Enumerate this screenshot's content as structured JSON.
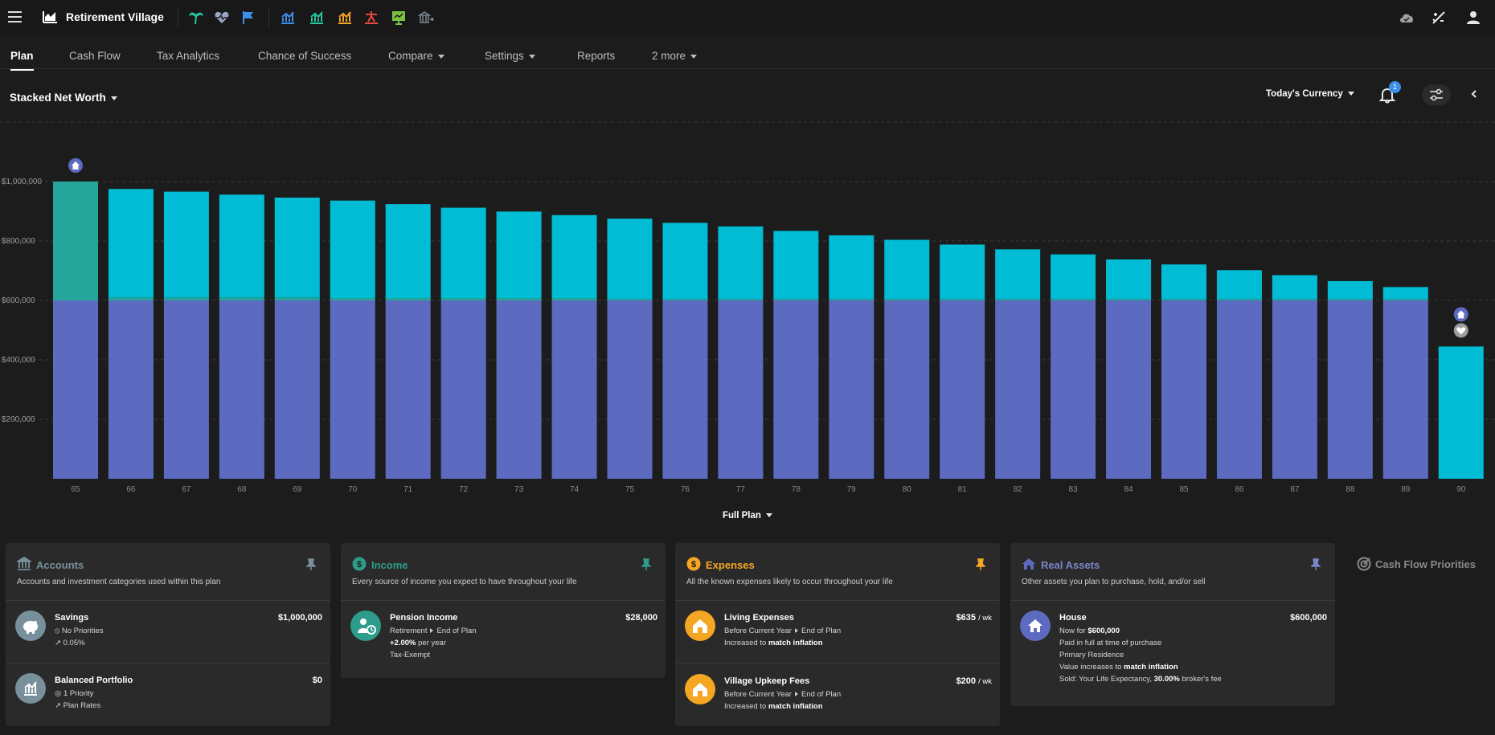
{
  "app": {
    "title": "Retirement Village"
  },
  "toolbar": {
    "icons": [
      "palm-tree-icon",
      "heart-monitor-icon",
      "flag-icon",
      "chart-blue-icon",
      "chart-green-icon",
      "chart-orange-icon",
      "chart-red-icon",
      "presentation-icon",
      "bank-arrow-icon"
    ]
  },
  "tabs": [
    {
      "label": "Plan",
      "active": true
    },
    {
      "label": "Cash Flow"
    },
    {
      "label": "Tax Analytics"
    },
    {
      "label": "Chance of Success"
    },
    {
      "label": "Compare",
      "dropdown": true
    },
    {
      "label": "Settings",
      "dropdown": true
    },
    {
      "label": "Reports"
    },
    {
      "label": "2 more",
      "dropdown": true
    }
  ],
  "chart_header": {
    "title": "Stacked Net Worth",
    "currency": "Today's Currency",
    "notification_count": "1",
    "range": "Full Plan"
  },
  "colors": {
    "house": "#5c6bc0",
    "savings": "#00bcd4",
    "portfolio": "#26a69a",
    "income": "#2e9c8a",
    "expenses": "#f5a623",
    "accounts": "#78909c"
  },
  "chart_data": {
    "type": "bar",
    "stacked": true,
    "title": "Stacked Net Worth",
    "xlabel": "",
    "ylabel": "",
    "ylim": [
      0,
      1200000
    ],
    "y_ticks": [
      "$200,000",
      "$400,000",
      "$600,000",
      "$800,000",
      "$1,000,000"
    ],
    "categories": [
      "65",
      "66",
      "67",
      "68",
      "69",
      "70",
      "71",
      "72",
      "73",
      "74",
      "75",
      "76",
      "77",
      "78",
      "79",
      "80",
      "81",
      "82",
      "83",
      "84",
      "85",
      "86",
      "87",
      "88",
      "89",
      "90"
    ],
    "series": [
      {
        "name": "House",
        "values": [
          600000,
          600000,
          600000,
          600000,
          600000,
          600000,
          600000,
          600000,
          600000,
          600000,
          600000,
          600000,
          600000,
          600000,
          600000,
          600000,
          600000,
          600000,
          600000,
          600000,
          600000,
          600000,
          600000,
          600000,
          600000,
          0
        ]
      },
      {
        "name": "Balanced Portfolio",
        "values": [
          400000,
          10000,
          10000,
          10000,
          10000,
          8000,
          8000,
          8000,
          8000,
          8000,
          5000,
          5000,
          5000,
          5000,
          5000,
          5000,
          5000,
          5000,
          5000,
          5000,
          5000,
          5000,
          5000,
          5000,
          5000,
          0
        ]
      },
      {
        "name": "Savings",
        "values": [
          0,
          365000,
          356000,
          346000,
          336000,
          328000,
          316000,
          304000,
          291000,
          279000,
          270000,
          256000,
          244000,
          229000,
          214000,
          199000,
          183000,
          167000,
          150000,
          133000,
          116000,
          97000,
          80000,
          60000,
          40000,
          445000
        ]
      }
    ],
    "markers": [
      {
        "category": "65",
        "icon": "home-marker-icon"
      },
      {
        "category": "90",
        "icon": "home-marker-icon"
      },
      {
        "category": "90",
        "icon": "heart-marker-icon"
      }
    ]
  },
  "cards": {
    "accounts": {
      "title": "Accounts",
      "desc": "Accounts and investment categories used within this plan",
      "items": [
        {
          "name": "Savings",
          "value": "$1,000,000",
          "line1": "No Priorities",
          "line2": "0.05%"
        },
        {
          "name": "Balanced Portfolio",
          "value": "$0",
          "line1": "1 Priority",
          "line2": "Plan Rates"
        }
      ]
    },
    "income": {
      "title": "Income",
      "desc": "Every source of income you expect to have throughout your life",
      "items": [
        {
          "name": "Pension Income",
          "value": "$28,000",
          "from": "Retirement",
          "to": "End of Plan",
          "rate": "+2.00%",
          "rate_suffix": "per year",
          "tax": "Tax-Exempt"
        }
      ]
    },
    "expenses": {
      "title": "Expenses",
      "desc": "All the known expenses likely to occur throughout your life",
      "items": [
        {
          "name": "Living Expenses",
          "value": "$635",
          "unit": "/ wk",
          "from": "Before Current Year",
          "to": "End of Plan",
          "inc_prefix": "Increased to",
          "inc": "match inflation"
        },
        {
          "name": "Village Upkeep Fees",
          "value": "$200",
          "unit": "/ wk",
          "from": "Before Current Year",
          "to": "End of Plan",
          "inc_prefix": "Increased to",
          "inc": "match inflation"
        }
      ]
    },
    "real_assets": {
      "title": "Real Assets",
      "desc": "Other assets you plan to purchase, hold, and/or sell",
      "items": [
        {
          "name": "House",
          "value": "$600,000",
          "line1_prefix": "Now for",
          "line1_value": "$600,000",
          "line2": "Paid in full at time of purchase",
          "line3": "Primary Residence",
          "line4_prefix": "Value increases to",
          "line4_value": "match inflation",
          "line5_prefix": "Sold: Your Life Expectancy,",
          "line5_value": "30.00%",
          "line5_suffix": "broker's fee"
        }
      ]
    }
  },
  "cash_flow_priorities": {
    "label": "Cash Flow Priorities"
  }
}
